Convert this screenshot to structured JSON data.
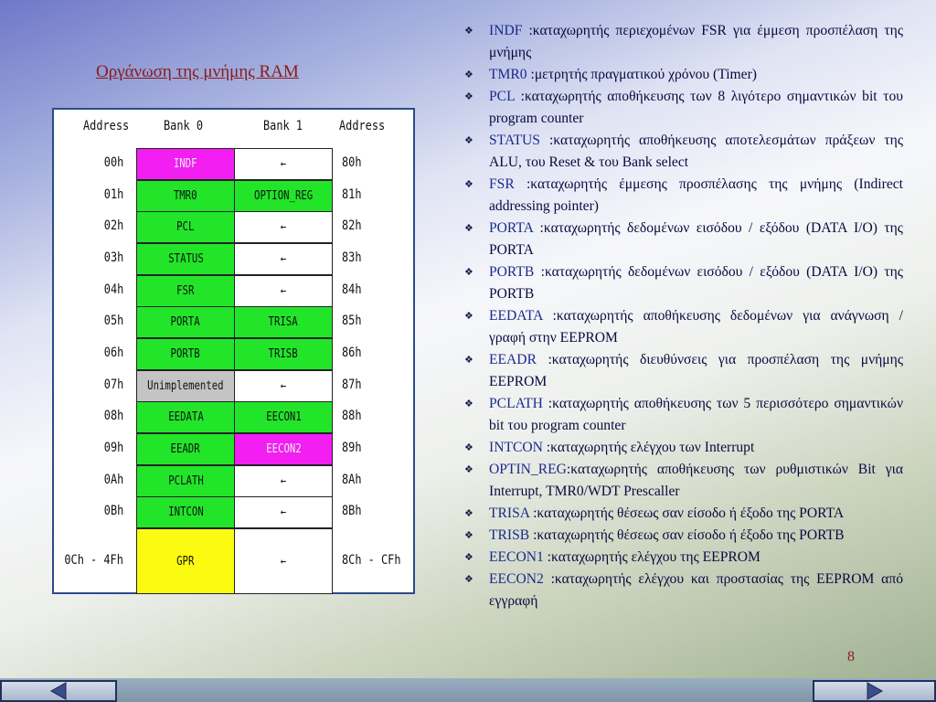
{
  "title": "Οργάνωση της μνήμης RAM",
  "page_number": "8",
  "table": {
    "headers": {
      "address_left": "Address",
      "bank0": "Bank 0",
      "bank1": "Bank 1",
      "address_right": "Address"
    },
    "rows": [
      {
        "addr_left": "00h",
        "bank0": "INDF",
        "bank1": "←",
        "addr_right": "80h",
        "bank0_color": "magenta",
        "bank1_color": "white"
      },
      {
        "addr_left": "01h",
        "bank0": "TMR0",
        "bank1": "OPTION_REG",
        "addr_right": "81h",
        "bank0_color": "green",
        "bank1_color": "green"
      },
      {
        "addr_left": "02h",
        "bank0": "PCL",
        "bank1": "←",
        "addr_right": "82h",
        "bank0_color": "green",
        "bank1_color": "white"
      },
      {
        "addr_left": "03h",
        "bank0": "STATUS",
        "bank1": "←",
        "addr_right": "83h",
        "bank0_color": "green",
        "bank1_color": "white"
      },
      {
        "addr_left": "04h",
        "bank0": "FSR",
        "bank1": "←",
        "addr_right": "84h",
        "bank0_color": "green",
        "bank1_color": "white"
      },
      {
        "addr_left": "05h",
        "bank0": "PORTA",
        "bank1": "TRISA",
        "addr_right": "85h",
        "bank0_color": "green",
        "bank1_color": "green"
      },
      {
        "addr_left": "06h",
        "bank0": "PORTB",
        "bank1": "TRISB",
        "addr_right": "86h",
        "bank0_color": "green",
        "bank1_color": "green"
      },
      {
        "addr_left": "07h",
        "bank0": "Unimplemented",
        "bank1": "←",
        "addr_right": "87h",
        "bank0_color": "grey",
        "bank1_color": "white"
      },
      {
        "addr_left": "08h",
        "bank0": "EEDATA",
        "bank1": "EECON1",
        "addr_right": "88h",
        "bank0_color": "green",
        "bank1_color": "green"
      },
      {
        "addr_left": "09h",
        "bank0": "EEADR",
        "bank1": "EECON2",
        "addr_right": "89h",
        "bank0_color": "green",
        "bank1_color": "magenta"
      },
      {
        "addr_left": "0Ah",
        "bank0": "PCLATH",
        "bank1": "←",
        "addr_right": "8Ah",
        "bank0_color": "green",
        "bank1_color": "white"
      },
      {
        "addr_left": "0Bh",
        "bank0": "INTCON",
        "bank1": "←",
        "addr_right": "8Bh",
        "bank0_color": "green",
        "bank1_color": "white"
      },
      {
        "addr_left": "0Ch - 4Fh",
        "bank0": "GPR",
        "bank1": "←",
        "addr_right": "8Ch - CFh",
        "bank0_color": "yellow",
        "bank1_color": "white"
      }
    ]
  },
  "bullet_glyph": "❖",
  "descriptions": [
    {
      "term": "INDF",
      "text": " :καταχωρητής περιεχομένων FSR για έμμεση προσπέλαση της μνήμης"
    },
    {
      "term": "TMR0",
      "text": " :μετρητής πραγματικού χρόνου (Timer)"
    },
    {
      "term": "PCL",
      "text": " :καταχωρητής αποθήκευσης των 8 λιγότερο σημαντικών bit του program counter"
    },
    {
      "term": "STATUS",
      "text": " :καταχωρητής αποθήκευσης αποτελεσμάτων πράξεων της ALU, του Reset & του Bank select"
    },
    {
      "term": "FSR",
      "text": " :καταχωρητής έμμεσης προσπέλασης της μνήμης (Indirect addressing pointer)"
    },
    {
      "term": "PORTA",
      "text": " :καταχωρητής δεδομένων εισόδου / εξόδου (DATA I/O) της PORTA"
    },
    {
      "term": "PORTB",
      "text": " :καταχωρητής δεδομένων εισόδου / εξόδου (DATA I/O) της PORTB"
    },
    {
      "term": "EEDATA",
      "text": " :καταχωρητής αποθήκευσης δεδομένων για ανάγνωση / γραφή στην EEPROM"
    },
    {
      "term": "EEADR",
      "text": " :καταχωρητής διευθύνσεις για προσπέλαση της μνήμης EEPROM"
    },
    {
      "term": "PCLATH",
      "text": " :καταχωρητής αποθήκευσης των 5 περισσότερο σημαντικών bit του program counter"
    },
    {
      "term": "INTCON",
      "text": " :καταχωρητής ελέγχου των Interrupt"
    },
    {
      "term": "OPTIN_REG",
      "text": ":καταχωρητής αποθήκευσης των ρυθμιστικών Bit για Interrupt, TMR0/WDT Prescaller"
    },
    {
      "term": "TRISA",
      "text": " :καταχωρητής θέσεως σαν είσοδο ή έξοδο της PORTA"
    },
    {
      "term": "TRISB",
      "text": " :καταχωρητής θέσεως σαν είσοδο ή έξοδο της PORTB"
    },
    {
      "term": "EECON1",
      "text": " :καταχωρητής ελέγχου της EEPROM"
    },
    {
      "term": "EECON2",
      "text": " :καταχωρητής ελέγχου και προστασίας της EEPROM από εγγραφή"
    }
  ],
  "nav": {
    "prev_icon": "triangle-left-icon",
    "next_icon": "triangle-right-icon"
  },
  "colors": {
    "green": "#22e52a",
    "magenta": "#f21ef2",
    "grey": "#c4c4c4",
    "yellow": "#fbfb12",
    "white": "#ffffff",
    "title": "#8b1a1a",
    "table_border": "#2d4a8a"
  }
}
